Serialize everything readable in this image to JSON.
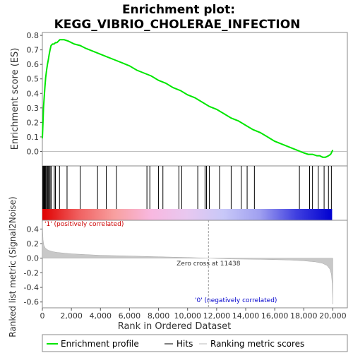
{
  "chart_data": {
    "title_line1": "Enrichment plot:",
    "title_line2": "KEGG_VIBRIO_CHOLERAE_INFECTION",
    "type": "line",
    "es_ylabel": "Enrichment score (ES)",
    "rank_ylabel": "Ranked list metric (Signal2Noise)",
    "xlabel": "Rank in Ordered Dataset",
    "xlim": [
      0,
      21000
    ],
    "es_ylim": [
      -0.1,
      0.82
    ],
    "rank_ylim": [
      -0.68,
      0.52
    ],
    "x_ticks": [
      0,
      2000,
      4000,
      6000,
      8000,
      10000,
      12000,
      14000,
      16000,
      18000,
      20000
    ],
    "x_tick_labels": [
      "0",
      "2,000",
      "4,000",
      "6,000",
      "8,000",
      "10,000",
      "12,000",
      "14,000",
      "16,000",
      "18,000",
      "20,000"
    ],
    "es_ticks": [
      0.0,
      0.1,
      0.2,
      0.3,
      0.4,
      0.5,
      0.6,
      0.7,
      0.8
    ],
    "es_tick_labels": [
      "0.0",
      "0.1",
      "0.2",
      "0.3",
      "0.4",
      "0.5",
      "0.6",
      "0.7",
      "0.8"
    ],
    "rank_ticks": [
      -0.6,
      -0.4,
      -0.2,
      0.0,
      0.2,
      0.4
    ],
    "rank_tick_labels": [
      "-0.6",
      "-0.4",
      "-0.2",
      "0.0",
      "0.2",
      "0.4"
    ],
    "zero_cross": 11438,
    "zero_cross_label": "Zero cross at 11438",
    "pos_label": "'1' (positively correlated)",
    "neg_label": "'0' (negatively correlated)",
    "series": [
      {
        "name": "Enrichment profile",
        "color": "#00e600",
        "x": [
          0,
          40,
          80,
          130,
          180,
          230,
          290,
          350,
          410,
          470,
          530,
          600,
          700,
          800,
          900,
          1000,
          1200,
          1500,
          1800,
          2200,
          2600,
          3000,
          3500,
          4000,
          4500,
          5000,
          5500,
          6000,
          6500,
          7000,
          7500,
          8000,
          8500,
          9000,
          9500,
          10000,
          10500,
          11000,
          11500,
          12000,
          12500,
          13000,
          13500,
          14000,
          14500,
          15000,
          15500,
          16000,
          16500,
          17000,
          17500,
          18000,
          18300,
          18600,
          18900,
          19100,
          19300,
          19500,
          19700,
          19850,
          20000
        ],
        "values": [
          0.09,
          0.19,
          0.3,
          0.38,
          0.45,
          0.51,
          0.56,
          0.6,
          0.63,
          0.67,
          0.7,
          0.73,
          0.74,
          0.74,
          0.75,
          0.75,
          0.77,
          0.77,
          0.76,
          0.74,
          0.73,
          0.71,
          0.69,
          0.67,
          0.65,
          0.63,
          0.61,
          0.59,
          0.56,
          0.54,
          0.52,
          0.49,
          0.47,
          0.44,
          0.42,
          0.39,
          0.37,
          0.34,
          0.31,
          0.29,
          0.26,
          0.23,
          0.21,
          0.18,
          0.15,
          0.13,
          0.1,
          0.07,
          0.05,
          0.03,
          0.01,
          -0.01,
          -0.02,
          -0.02,
          -0.03,
          -0.03,
          -0.04,
          -0.04,
          -0.03,
          -0.02,
          0.01
        ]
      }
    ],
    "hits": [
      30,
      70,
      110,
      150,
      190,
      240,
      300,
      360,
      420,
      480,
      540,
      610,
      820,
      900,
      1180,
      1700,
      2600,
      3800,
      4400,
      5100,
      7200,
      7400,
      8000,
      8300,
      9400,
      9600,
      10700,
      11200,
      11300,
      11500,
      12200,
      13000,
      13700,
      14100,
      14600,
      17700,
      18400,
      18600,
      19000,
      19400,
      19700,
      19900
    ],
    "rank_metric": {
      "x": [
        0,
        50,
        100,
        200,
        400,
        700,
        1000,
        1500,
        2000,
        3000,
        4000,
        6000,
        8000,
        10000,
        11438,
        13000,
        15000,
        17000,
        18000,
        18800,
        19300,
        19600,
        19800,
        19900,
        19960,
        20000
      ],
      "values": [
        0.5,
        0.25,
        0.18,
        0.14,
        0.11,
        0.09,
        0.08,
        0.07,
        0.06,
        0.05,
        0.04,
        0.03,
        0.02,
        0.01,
        0.0,
        -0.01,
        -0.015,
        -0.025,
        -0.035,
        -0.05,
        -0.07,
        -0.1,
        -0.15,
        -0.22,
        -0.35,
        -0.63
      ]
    },
    "legend": [
      "Enrichment profile",
      "Hits",
      "Ranking metric scores"
    ],
    "colors": {
      "es_line": "#00e600",
      "hit_line": "#000000",
      "metric_fill": "#c8c8c8",
      "zero_line": "#c0c0c0",
      "pos_text": "#cc0000",
      "neg_text": "#0000cc",
      "bar_gradient": [
        "#e00000",
        "#f06060",
        "#f8a0a0",
        "#f8b8e0",
        "#e8c8f0",
        "#c8c8f8",
        "#a0a0f0",
        "#4040e0",
        "#0000d0"
      ]
    }
  }
}
